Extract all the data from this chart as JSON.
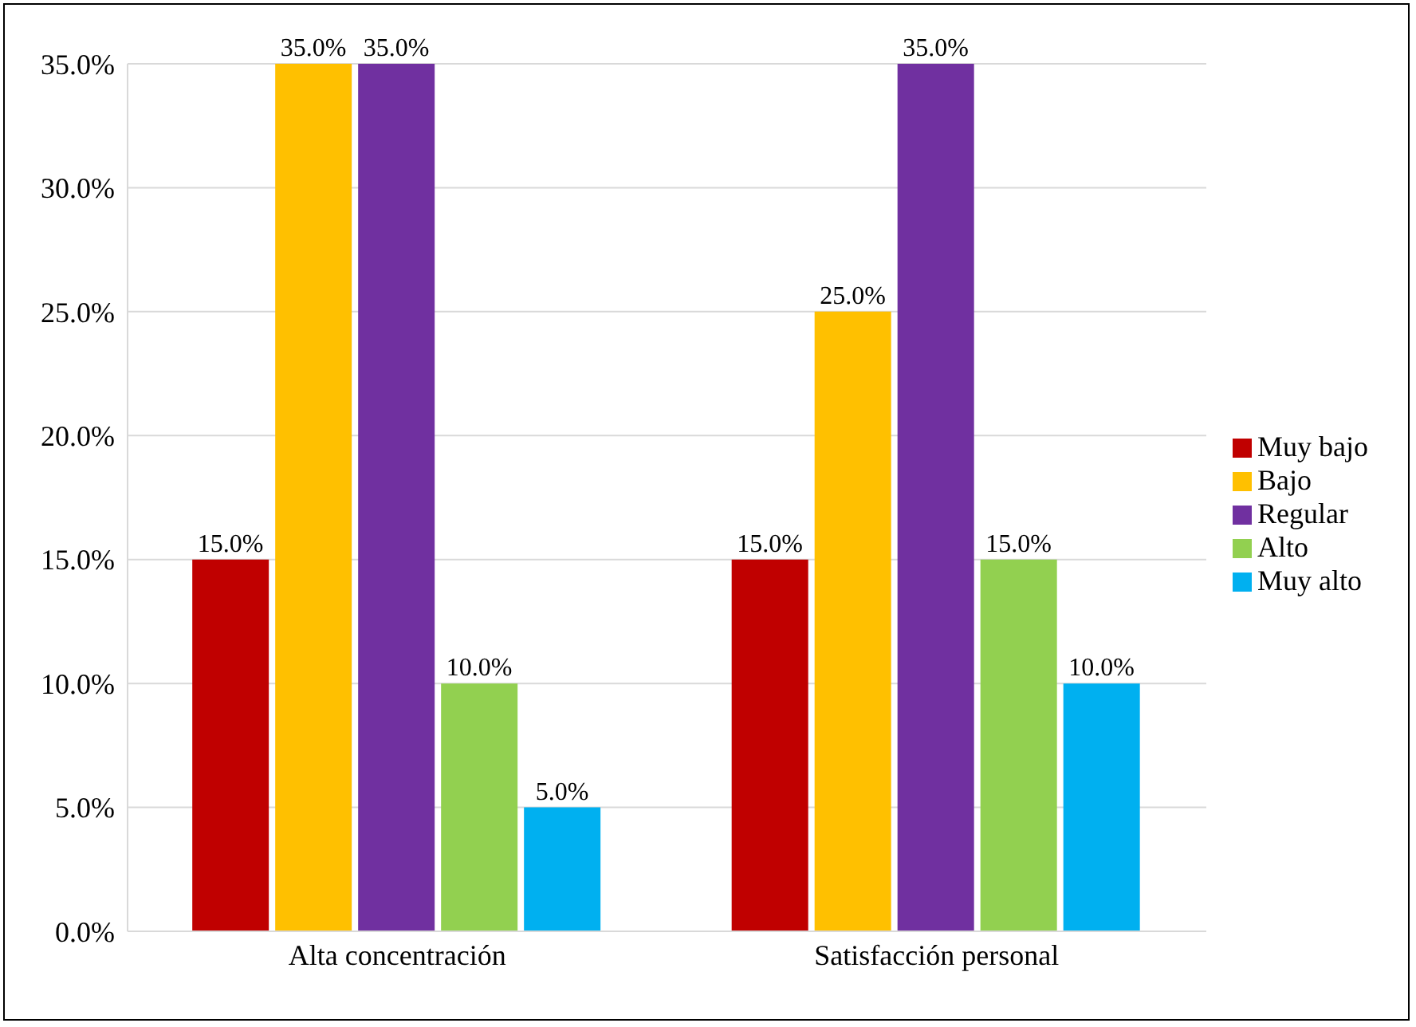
{
  "chart_data": {
    "type": "bar",
    "categories": [
      "Alta concentración",
      "Satisfacción personal"
    ],
    "series": [
      {
        "name": "Muy bajo",
        "color": "#c00000",
        "values": [
          15,
          15
        ],
        "value_labels": [
          "15.0%",
          "15.0%"
        ]
      },
      {
        "name": "Bajo",
        "color": "#ffc000",
        "values": [
          35,
          25
        ],
        "value_labels": [
          "35.0%",
          "25.0%"
        ]
      },
      {
        "name": "Regular",
        "color": "#7030a0",
        "values": [
          35,
          35
        ],
        "value_labels": [
          "35.0%",
          "35.0%"
        ]
      },
      {
        "name": "Alto",
        "color": "#92d050",
        "values": [
          10,
          15
        ],
        "value_labels": [
          "10.0%",
          "15.0%"
        ]
      },
      {
        "name": "Muy alto",
        "color": "#00b0f0",
        "values": [
          5,
          10
        ],
        "value_labels": [
          "5.0%",
          "10.0%"
        ]
      }
    ],
    "ylim": [
      0,
      35
    ],
    "yticks": [
      {
        "value": 0,
        "label": "0.0%"
      },
      {
        "value": 5,
        "label": "5.0%"
      },
      {
        "value": 10,
        "label": "10.0%"
      },
      {
        "value": 15,
        "label": "15.0%"
      },
      {
        "value": 20,
        "label": "20.0%"
      },
      {
        "value": 25,
        "label": "25.0%"
      },
      {
        "value": 30,
        "label": "30.0%"
      },
      {
        "value": 35,
        "label": "35.0%"
      }
    ],
    "grid": "y",
    "legend": "right"
  }
}
